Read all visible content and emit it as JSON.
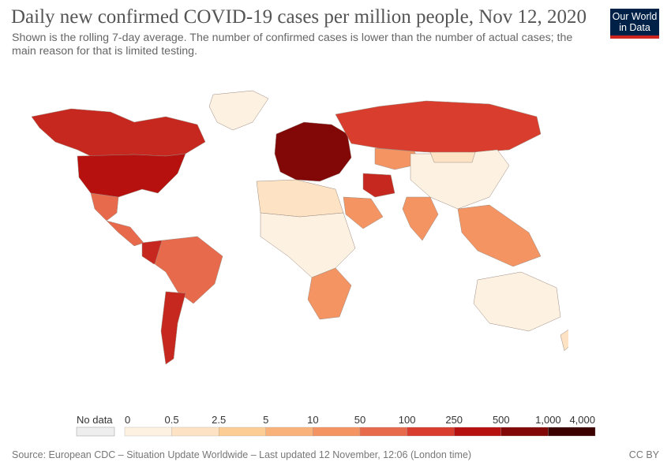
{
  "header": {
    "title": "Daily new confirmed COVID-19 cases per million people, Nov 12, 2020",
    "subtitle": "Shown is the rolling 7-day average. The number of confirmed cases is lower than the number of actual cases; the main reason for that is limited testing.",
    "logo_line1": "Our World",
    "logo_line2": "in Data"
  },
  "legend": {
    "no_data_label": "No data",
    "no_data_color": "#eeeeee",
    "ticks": [
      "0",
      "0.5",
      "2.5",
      "5",
      "10",
      "50",
      "100",
      "250",
      "500",
      "1,000",
      "4,000"
    ],
    "colors": [
      "#fdf1e2",
      "#fde3c4",
      "#fdcd96",
      "#f9b27a",
      "#f49462",
      "#e86a4c",
      "#d83d2d",
      "#b7110f",
      "#820808",
      "#3b0000"
    ]
  },
  "regions": [
    {
      "name": "Canada",
      "color": "#c6281f"
    },
    {
      "name": "United States",
      "color": "#b7110f"
    },
    {
      "name": "Greenland",
      "color": "#fdf1e2"
    },
    {
      "name": "Mexico",
      "color": "#e86a4c"
    },
    {
      "name": "Central America",
      "color": "#e86a4c"
    },
    {
      "name": "Colombia",
      "color": "#c6281f"
    },
    {
      "name": "Brazil",
      "color": "#e86a4c"
    },
    {
      "name": "Argentina",
      "color": "#c6281f"
    },
    {
      "name": "Europe",
      "color": "#820808"
    },
    {
      "name": "Russia",
      "color": "#d83d2d"
    },
    {
      "name": "Kazakhstan",
      "color": "#f49462"
    },
    {
      "name": "China",
      "color": "#fdf1e2"
    },
    {
      "name": "Mongolia",
      "color": "#fde3c4"
    },
    {
      "name": "India",
      "color": "#f49462"
    },
    {
      "name": "Iran",
      "color": "#c6281f"
    },
    {
      "name": "Saudi Arabia",
      "color": "#f49462"
    },
    {
      "name": "North Africa",
      "color": "#fde3c4"
    },
    {
      "name": "Sub-Saharan Africa",
      "color": "#fdf1e2"
    },
    {
      "name": "Southern Africa",
      "color": "#f49462"
    },
    {
      "name": "Southeast Asia",
      "color": "#f49462"
    },
    {
      "name": "Australia",
      "color": "#fdf1e2"
    },
    {
      "name": "New Zealand",
      "color": "#fde3c4"
    }
  ],
  "footer": {
    "source": "Source: European CDC – Situation Update Worldwide – Last updated 12 November, 12:06 (London time)",
    "license": "CC BY"
  }
}
